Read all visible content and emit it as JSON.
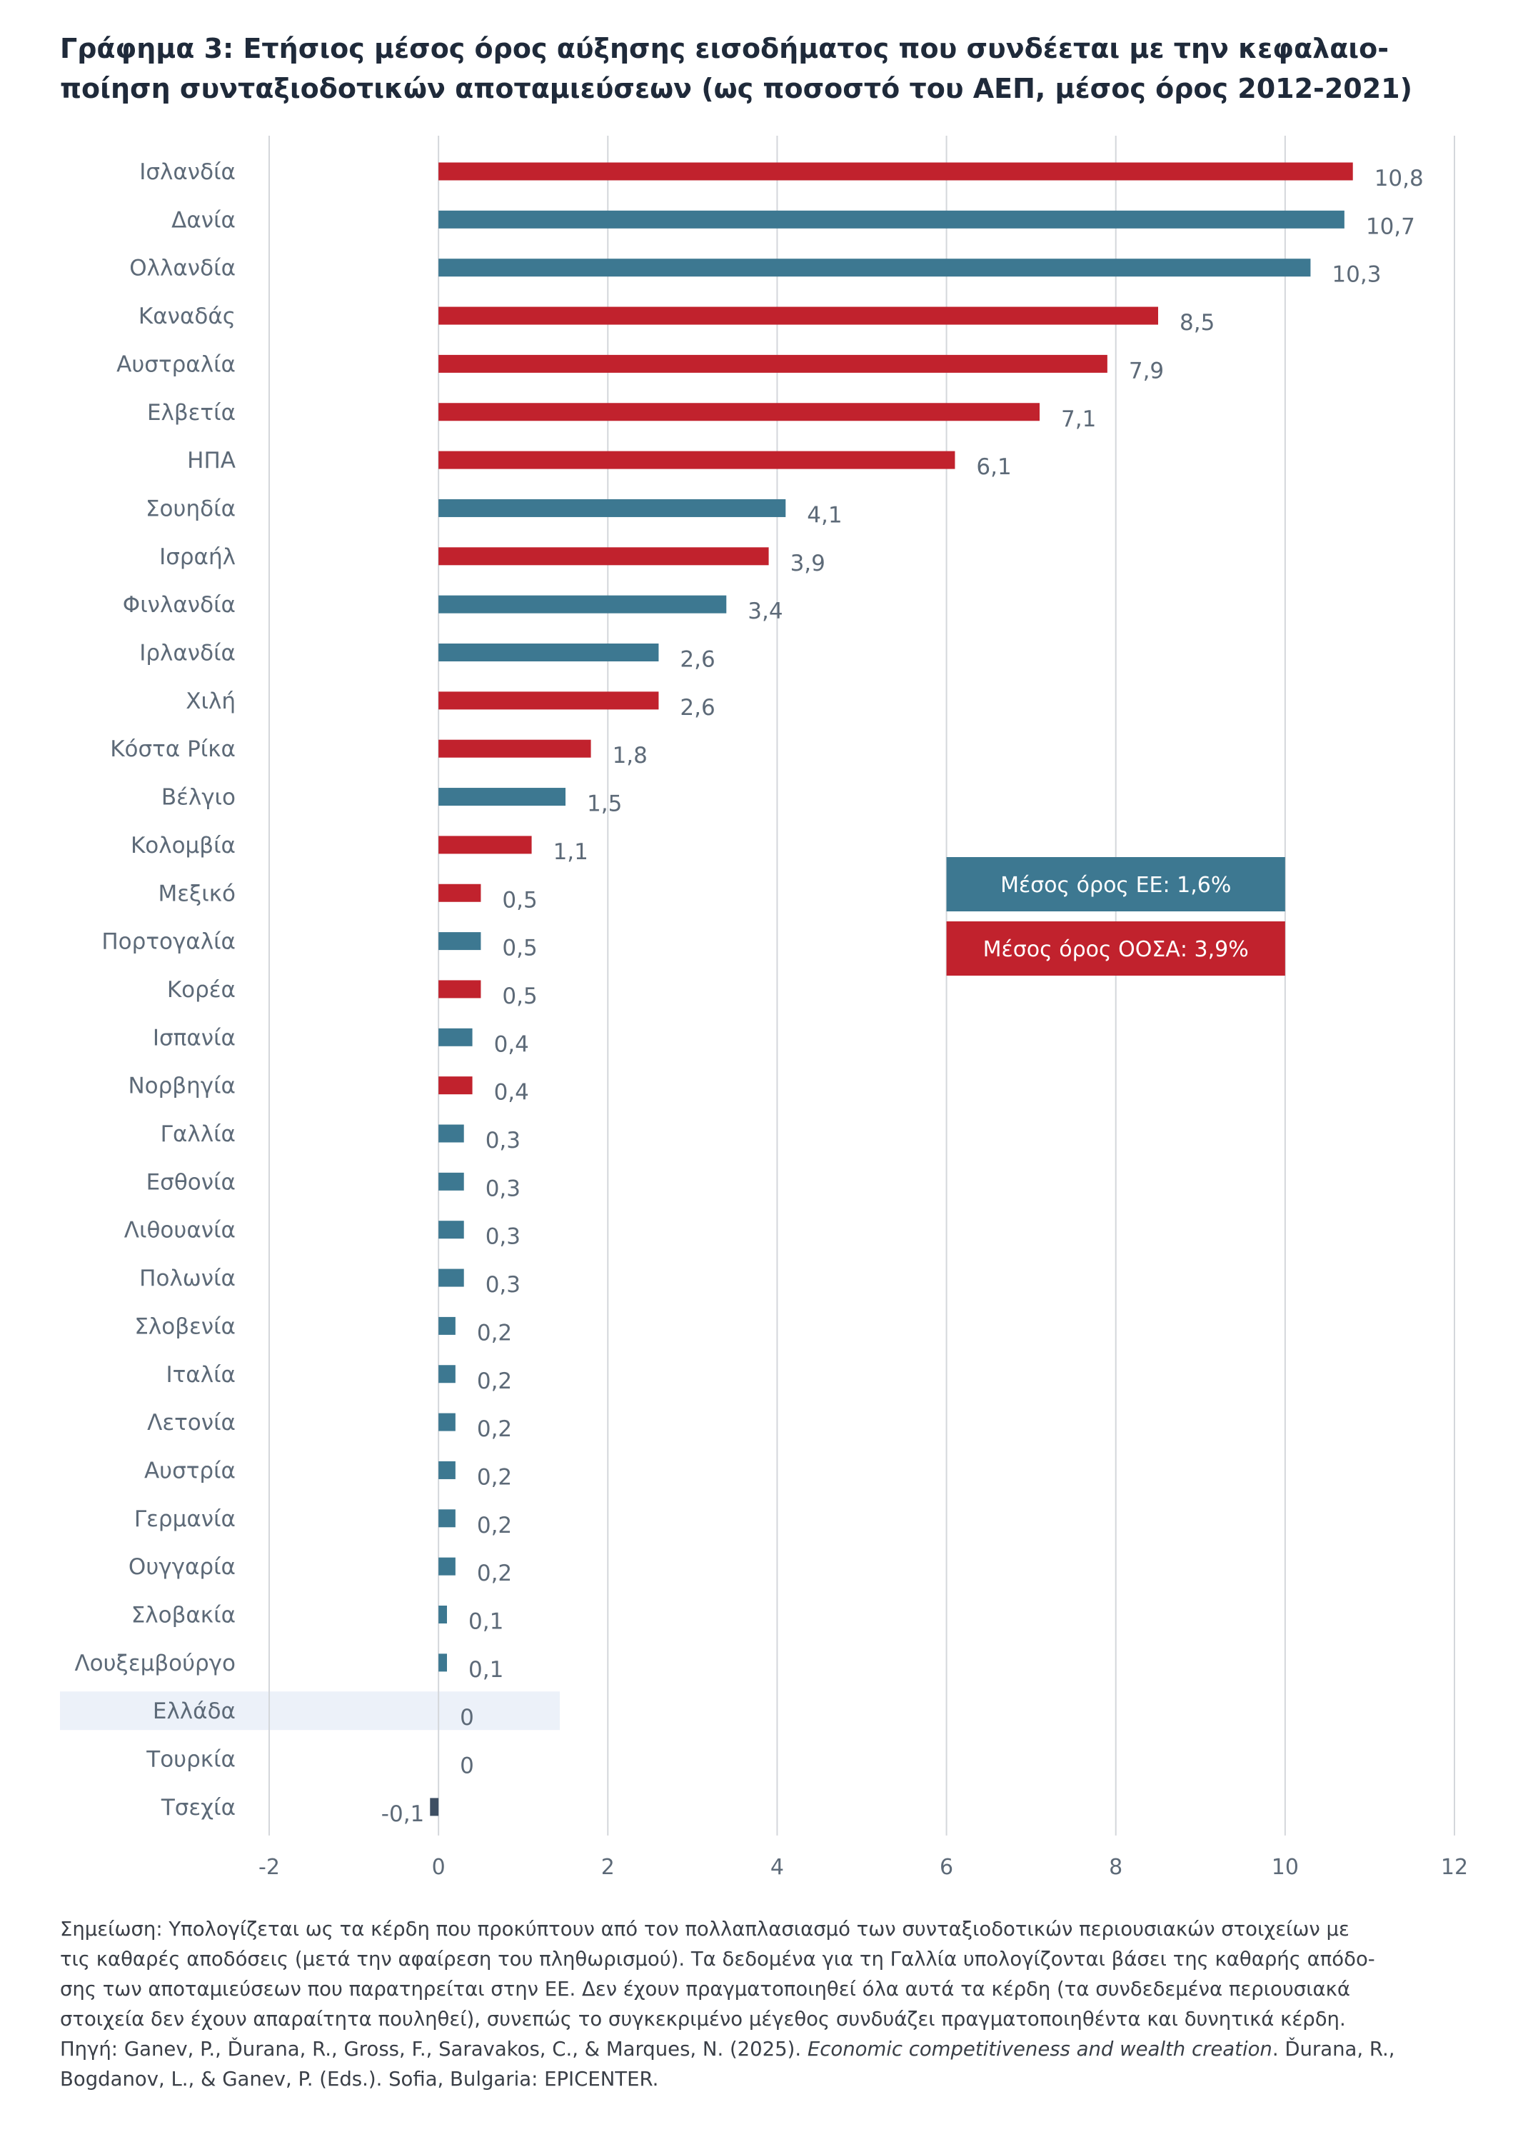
{
  "title": {
    "line1": "Γράφημα 3: Ετήσιος μέσος όρος αύξησης εισοδήματος που συνδέεται με την κεφαλαιο-",
    "line2": "ποίηση συνταξιοδοτικών αποταμιεύσεων (ως ποσοστό του ΑΕΠ, μέσος όρος 2012-2021)"
  },
  "colors": {
    "oecd": "#c1222d",
    "eu": "#3d7891",
    "negative": "#3e4f63",
    "highlight": "#ecf1f9",
    "grid": "#d4d7db",
    "label": "#5d6a78"
  },
  "chart_data": {
    "type": "bar",
    "orientation": "horizontal",
    "xlim": [
      -2,
      12
    ],
    "xticks": [
      "-2",
      "0",
      "2",
      "4",
      "6",
      "8",
      "10",
      "12"
    ],
    "grid": "vertical",
    "highlight_category": "Ελλάδα",
    "categories": [
      "Ισλανδία",
      "Δανία",
      "Ολλανδία",
      "Καναδάς",
      "Αυστραλία",
      "Ελβετία",
      "ΗΠΑ",
      "Σουηδία",
      "Ισραήλ",
      "Φινλανδία",
      "Ιρλανδία",
      "Χιλή",
      "Κόστα Ρίκα",
      "Βέλγιο",
      "Κολομβία",
      "Μεξικό",
      "Πορτογαλία",
      "Κορέα",
      "Ισπανία",
      "Νορβηγία",
      "Γαλλία",
      "Εσθονία",
      "Λιθουανία",
      "Πολωνία",
      "Σλοβενία",
      "Ιταλία",
      "Λετονία",
      "Αυστρία",
      "Γερμανία",
      "Ουγγαρία",
      "Σλοβακία",
      "Λουξεμβούργο",
      "Ελλάδα",
      "Τουρκία",
      "Τσεχία"
    ],
    "values": [
      10.8,
      10.7,
      10.3,
      8.5,
      7.9,
      7.1,
      6.1,
      4.1,
      3.9,
      3.4,
      2.6,
      2.6,
      1.8,
      1.5,
      1.1,
      0.5,
      0.5,
      0.5,
      0.4,
      0.4,
      0.3,
      0.3,
      0.3,
      0.3,
      0.2,
      0.2,
      0.2,
      0.2,
      0.2,
      0.2,
      0.1,
      0.1,
      0,
      0,
      -0.1
    ],
    "value_labels": [
      "10,8",
      "10,7",
      "10,3",
      "8,5",
      "7,9",
      "7,1",
      "6,1",
      "4,1",
      "3,9",
      "3,4",
      "2,6",
      "2,6",
      "1,8",
      "1,5",
      "1,1",
      "0,5",
      "0,5",
      "0,5",
      "0,4",
      "0,4",
      "0,3",
      "0,3",
      "0,3",
      "0,3",
      "0,2",
      "0,2",
      "0,2",
      "0,2",
      "0,2",
      "0,2",
      "0,1",
      "0,1",
      "0",
      "0",
      "-0,1"
    ],
    "groups": [
      "oecd",
      "eu",
      "eu",
      "oecd",
      "oecd",
      "oecd",
      "oecd",
      "eu",
      "oecd",
      "eu",
      "eu",
      "oecd",
      "oecd",
      "eu",
      "oecd",
      "oecd",
      "eu",
      "oecd",
      "eu",
      "oecd",
      "eu",
      "eu",
      "eu",
      "eu",
      "eu",
      "eu",
      "eu",
      "eu",
      "eu",
      "eu",
      "eu",
      "eu",
      "eu",
      "oecd",
      "negative"
    ],
    "legend": [
      {
        "key": "eu",
        "label": "Μέσος όρος ΕΕ: 1,6%"
      },
      {
        "key": "oecd",
        "label": "Μέσος όρος ΟΟΣΑ: 3,9%"
      }
    ]
  },
  "note": {
    "line1": "Σημείωση: Υπολογίζεται ως τα κέρδη που προκύπτουν από τον πολλαπλασιασμό των συνταξιοδοτικών περιουσιακών στοιχείων με",
    "line2": "τις καθαρές αποδόσεις (μετά την αφαίρεση του πληθωρισμού). Τα δεδομένα για τη Γαλλία υπολογίζονται βάσει της καθαρής απόδο-",
    "line3": "σης των αποταμιεύσεων που παρατηρείται στην ΕΕ. Δεν έχουν πραγματοποιηθεί όλα αυτά τα κέρδη (τα συνδεδεμένα περιουσιακά",
    "line4": "στοιχεία δεν έχουν απαραίτητα πουληθεί), συνεπώς το συγκεκριμένο μέγεθος συνδυάζει πραγματοποιηθέντα και δυνητικά κέρδη.",
    "source_prefix": "Πηγή: Ganev, P., Ďurana, R., Gross, F., Saravakos, C., & Marques, N. (2025). ",
    "source_title": "Economic competitiveness and wealth creation",
    "source_suffix": ". Ďurana, R.,",
    "line6": "Bogdanov, L., & Ganev, P. (Eds.). Sofia, Bulgaria: EPICENTER."
  }
}
